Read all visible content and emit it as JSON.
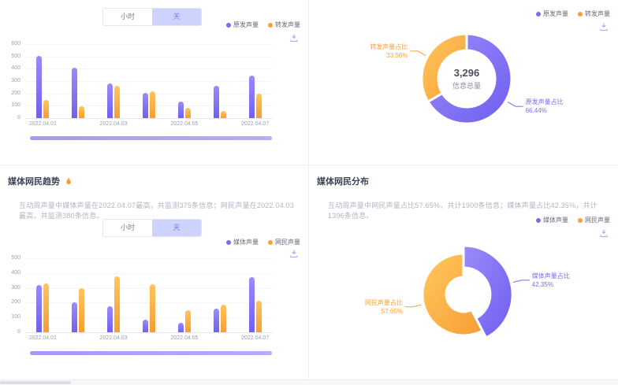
{
  "colors": {
    "purple": "#7d6bf2",
    "orange": "#f9a03a",
    "toggle_active_bg": "#cdd3fc",
    "toggle_active_text": "#6e79f2",
    "datazoom": "#a698f8"
  },
  "panels": {
    "trend_interaction": {
      "toggle": {
        "options": [
          "小时",
          "天"
        ],
        "active": "天"
      },
      "legend": [
        {
          "label": "原发声量",
          "color": "purple"
        },
        {
          "label": "转发声量",
          "color": "orange"
        }
      ],
      "download_icon": "download-icon"
    },
    "distribution_interaction": {
      "legend": [
        {
          "label": "原发声量",
          "color": "purple"
        },
        {
          "label": "转发声量",
          "color": "orange"
        }
      ],
      "center_value": "3,296",
      "center_label": "信息总量",
      "download_icon": "download-icon"
    },
    "trend_media": {
      "title": "媒体网民趋势",
      "title_icon": "hot-icon",
      "description": "互动周声量中媒体声量在2022.04.07最高，共监测375条信息；网民声量在2022.04.03最高，共监测380条信息。",
      "toggle": {
        "options": [
          "小时",
          "天"
        ],
        "active": "天"
      },
      "legend": [
        {
          "label": "媒体声量",
          "color": "purple"
        },
        {
          "label": "网民声量",
          "color": "orange"
        }
      ],
      "download_icon": "download-icon"
    },
    "distribution_media": {
      "title": "媒体网民分布",
      "description": "互动周声量中网民声量占比57.65%，共计1900条信息；媒体声量占比42.35%，共计1396条信息。",
      "legend": [
        {
          "label": "媒体声量",
          "color": "purple"
        },
        {
          "label": "网民声量",
          "color": "orange"
        }
      ],
      "download_icon": "download-icon"
    }
  },
  "chart_data": [
    {
      "id": "bar_top",
      "type": "bar",
      "categories": [
        "2022.04.01",
        "2022.04.02",
        "2022.04.03",
        "2022.04.04",
        "2022.04.05",
        "2022.04.06",
        "2022.04.07"
      ],
      "series": [
        {
          "name": "原发声量",
          "color": "purple",
          "values": [
            505,
            410,
            280,
            205,
            135,
            265,
            345
          ]
        },
        {
          "name": "转发声量",
          "color": "orange",
          "values": [
            150,
            95,
            265,
            215,
            85,
            60,
            200
          ]
        }
      ],
      "ylim": [
        0,
        600
      ],
      "ytick": 100,
      "xtick_labels": [
        "2022.04.01",
        "2022.04.03",
        "2022.04.05",
        "2022.04.07"
      ],
      "grid": true,
      "legend_position": "top-right"
    },
    {
      "id": "donut_top",
      "type": "pie",
      "center_value": "3,296",
      "center_label": "信息总量",
      "slices": [
        {
          "name": "原发声量占比",
          "percent": 66.44,
          "color": "purple"
        },
        {
          "name": "转发声量占比",
          "percent": 33.56,
          "color": "orange"
        }
      ]
    },
    {
      "id": "bar_bottom",
      "type": "bar",
      "categories": [
        "2022.04.01",
        "2022.04.02",
        "2022.04.03",
        "2022.04.04",
        "2022.04.05",
        "2022.04.06",
        "2022.04.07"
      ],
      "series": [
        {
          "name": "媒体声量",
          "color": "purple",
          "values": [
            320,
            205,
            175,
            85,
            65,
            160,
            375
          ]
        },
        {
          "name": "网民声量",
          "color": "orange",
          "values": [
            330,
            300,
            380,
            325,
            150,
            185,
            215
          ]
        }
      ],
      "ylim": [
        0,
        500
      ],
      "ytick": 100,
      "xtick_labels": [
        "2022.04.01",
        "2022.04.03",
        "2022.04.05",
        "2022.04.07"
      ],
      "grid": true,
      "legend_position": "top-right"
    },
    {
      "id": "donut_bottom",
      "type": "pie",
      "slices": [
        {
          "name": "媒体声量占比",
          "percent": 42.35,
          "color": "purple"
        },
        {
          "name": "网民声量占比",
          "percent": 57.65,
          "color": "orange"
        }
      ]
    }
  ]
}
